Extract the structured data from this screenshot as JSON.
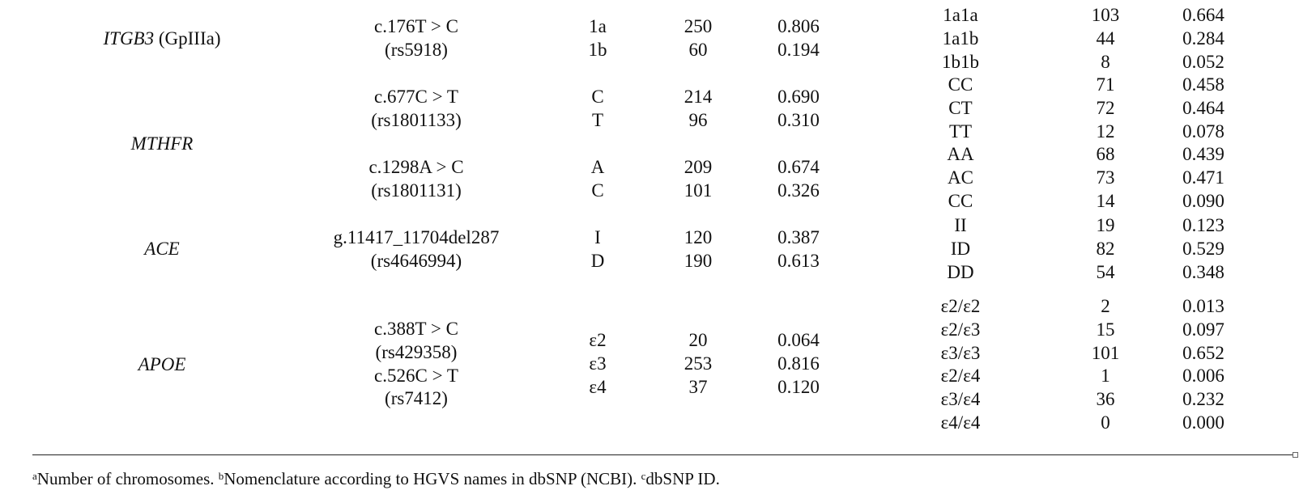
{
  "columns_x": {},
  "rows": [
    {
      "gene": "ITGB3",
      "gene_suffix": " (GpIIIa)",
      "variants": [
        {
          "lines": [
            "c.176T > C",
            "(rs5918)"
          ]
        }
      ],
      "alleles": [
        {
          "allele": "1a",
          "n": "250",
          "freq": "0.806"
        },
        {
          "allele": "1b",
          "n": "60",
          "freq": "0.194"
        }
      ],
      "genotypes": [
        {
          "genotype": "1a1a",
          "n": "103",
          "freq": "0.664"
        },
        {
          "genotype": "1a1b",
          "n": "44",
          "freq": "0.284"
        },
        {
          "genotype": "1b1b",
          "n": "8",
          "freq": "0.052"
        }
      ]
    },
    {
      "gene": "MTHFR",
      "gene_suffix": "",
      "variants": [
        {
          "lines": [
            "c.677C > T",
            "(rs1801133)"
          ]
        },
        {
          "lines": [
            "c.1298A > C",
            "(rs1801131)"
          ]
        }
      ],
      "alleles": [
        {
          "allele": "C",
          "n": "214",
          "freq": "0.690"
        },
        {
          "allele": "T",
          "n": "96",
          "freq": "0.310"
        },
        {
          "allele": "A",
          "n": "209",
          "freq": "0.674"
        },
        {
          "allele": "C",
          "n": "101",
          "freq": "0.326"
        }
      ],
      "genotypes": [
        {
          "genotype": "CC",
          "n": "71",
          "freq": "0.458"
        },
        {
          "genotype": "CT",
          "n": "72",
          "freq": "0.464"
        },
        {
          "genotype": "TT",
          "n": "12",
          "freq": "0.078"
        },
        {
          "genotype": "AA",
          "n": "68",
          "freq": "0.439"
        },
        {
          "genotype": "AC",
          "n": "73",
          "freq": "0.471"
        },
        {
          "genotype": "CC",
          "n": "14",
          "freq": "0.090"
        }
      ]
    },
    {
      "gene": "ACE",
      "gene_suffix": "",
      "variants": [
        {
          "lines": [
            "g.11417_11704del287",
            "(rs4646994)"
          ]
        }
      ],
      "alleles": [
        {
          "allele": "I",
          "n": "120",
          "freq": "0.387"
        },
        {
          "allele": "D",
          "n": "190",
          "freq": "0.613"
        }
      ],
      "genotypes": [
        {
          "genotype": "II",
          "n": "19",
          "freq": "0.123"
        },
        {
          "genotype": "ID",
          "n": "82",
          "freq": "0.529"
        },
        {
          "genotype": "DD",
          "n": "54",
          "freq": "0.348"
        }
      ]
    },
    {
      "gene": "APOE",
      "gene_suffix": "",
      "variants": [
        {
          "lines": [
            "c.388T > C",
            "(rs429358)",
            "c.526C > T",
            "(rs7412)"
          ]
        }
      ],
      "alleles": [
        {
          "allele": "ε2",
          "n": "20",
          "freq": "0.064"
        },
        {
          "allele": "ε3",
          "n": "253",
          "freq": "0.816"
        },
        {
          "allele": "ε4",
          "n": "37",
          "freq": "0.120"
        }
      ],
      "genotypes": [
        {
          "genotype": "ε2/ε2",
          "n": "2",
          "freq": "0.013"
        },
        {
          "genotype": "ε2/ε3",
          "n": "15",
          "freq": "0.097"
        },
        {
          "genotype": "ε3/ε3",
          "n": "101",
          "freq": "0.652"
        },
        {
          "genotype": "ε2/ε4",
          "n": "1",
          "freq": "0.006"
        },
        {
          "genotype": "ε3/ε4",
          "n": "36",
          "freq": "0.232"
        },
        {
          "genotype": "ε4/ε4",
          "n": "0",
          "freq": "0.000"
        }
      ]
    }
  ],
  "footnote": [
    {
      "mark": "a",
      "text": "Number of chromosomes. "
    },
    {
      "mark": "b",
      "text": "Nomenclature according to HGVS names in dbSNP (NCBI). "
    },
    {
      "mark": "c",
      "text": "dbSNP ID."
    }
  ]
}
